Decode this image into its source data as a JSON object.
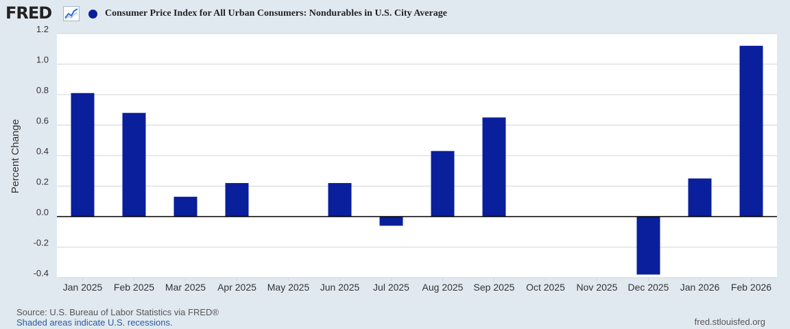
{
  "header": {
    "logo_text": "FRED",
    "series_title": "Consumer Price Index for All Urban Consumers: Nondurables in U.S. City Average"
  },
  "chart_data": {
    "type": "bar",
    "title": "Consumer Price Index for All Urban Consumers: Nondurables in U.S. City Average",
    "ylabel": "Percent Change",
    "xlabel": "",
    "ylim": [
      -0.4,
      1.2
    ],
    "yticks": [
      {
        "value": 1.2,
        "label": "1.2"
      },
      {
        "value": 1.0,
        "label": "1.0"
      },
      {
        "value": 0.8,
        "label": "0.8"
      },
      {
        "value": 0.6,
        "label": "0.6"
      },
      {
        "value": 0.4,
        "label": "0.4"
      },
      {
        "value": 0.2,
        "label": "0.2"
      },
      {
        "value": 0.0,
        "label": "0.0"
      },
      {
        "value": -0.2,
        "label": "-0.2"
      },
      {
        "value": -0.4,
        "label": "-0.4"
      }
    ],
    "grid": true,
    "categories": [
      "Jan 2025",
      "Feb 2025",
      "Mar 2025",
      "Apr 2025",
      "May 2025",
      "Jun 2025",
      "Jul 2025",
      "Aug 2025",
      "Sep 2025",
      "Oct 2025",
      "Nov 2025",
      "Dec 2025",
      "Jan 2026",
      "Feb 2026"
    ],
    "series": [
      {
        "name": "Consumer Price Index for All Urban Consumers: Nondurables in U.S. City Average",
        "values": [
          0.81,
          0.68,
          0.13,
          0.22,
          null,
          0.22,
          -0.06,
          0.43,
          0.65,
          null,
          null,
          -0.38,
          0.25,
          1.12
        ]
      }
    ],
    "colors": {
      "bar": "#0a1f9c",
      "plot_background": "#ffffff",
      "page_background": "#e1e9f0",
      "grid": "#d0d5da",
      "zero_line": "#000000",
      "text": "#333333"
    }
  },
  "footer": {
    "source": "Source: U.S. Bureau of Labor Statistics via FRED®",
    "recession_note": "Shaded areas indicate U.S. recessions.",
    "site": "fred.stlouisfed.org"
  }
}
